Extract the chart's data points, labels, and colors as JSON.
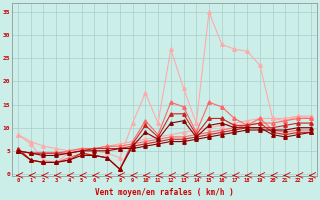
{
  "xlabel": "Vent moyen/en rafales ( km/h )",
  "background_color": "#cceee8",
  "grid_color": "#aacccc",
  "x_ticks": [
    0,
    1,
    2,
    3,
    4,
    5,
    6,
    7,
    8,
    9,
    10,
    11,
    12,
    13,
    14,
    15,
    16,
    17,
    18,
    19,
    20,
    21,
    22,
    23
  ],
  "ylim": [
    -0.5,
    37
  ],
  "xlim": [
    -0.5,
    23.5
  ],
  "series": [
    {
      "color": "#ffaaaa",
      "linewidth": 0.8,
      "marker": "^",
      "markersize": 2.5,
      "x": [
        0,
        1,
        2,
        3,
        4,
        5,
        6,
        7,
        8,
        9,
        10,
        11,
        12,
        13,
        14,
        15,
        16,
        17,
        18,
        19,
        20,
        21,
        22,
        23
      ],
      "y": [
        8.5,
        6.5,
        3.0,
        2.5,
        4.5,
        5.5,
        5.0,
        4.5,
        3.5,
        11.0,
        17.5,
        11.0,
        27.0,
        18.5,
        11.0,
        35.0,
        28.0,
        27.0,
        26.5,
        23.5,
        12.0,
        11.5,
        12.5,
        12.0
      ]
    },
    {
      "color": "#ffaaaa",
      "linewidth": 0.8,
      "marker": "^",
      "markersize": 2.5,
      "x": [
        0,
        1,
        2,
        3,
        4,
        5,
        6,
        7,
        8,
        9,
        10,
        11,
        12,
        13,
        14,
        15,
        16,
        17,
        18,
        19,
        20,
        21,
        22,
        23
      ],
      "y": [
        8.5,
        7.0,
        6.0,
        5.5,
        5.0,
        5.5,
        5.5,
        6.0,
        6.5,
        7.0,
        7.5,
        8.0,
        8.5,
        9.0,
        9.5,
        10.0,
        10.5,
        11.0,
        11.5,
        12.0,
        12.0,
        12.0,
        12.5,
        12.5
      ]
    },
    {
      "color": "#ff6666",
      "linewidth": 0.8,
      "marker": "^",
      "markersize": 2.5,
      "x": [
        0,
        1,
        2,
        3,
        4,
        5,
        6,
        7,
        8,
        9,
        10,
        11,
        12,
        13,
        14,
        15,
        16,
        17,
        18,
        19,
        20,
        21,
        22,
        23
      ],
      "y": [
        5.5,
        3.0,
        2.5,
        2.5,
        3.5,
        4.5,
        4.0,
        3.5,
        1.0,
        7.0,
        11.5,
        8.5,
        15.5,
        14.5,
        9.0,
        15.5,
        14.5,
        12.0,
        10.5,
        12.0,
        9.5,
        9.0,
        9.5,
        9.5
      ]
    },
    {
      "color": "#ff6666",
      "linewidth": 0.8,
      "marker": "^",
      "markersize": 2.5,
      "x": [
        0,
        1,
        2,
        3,
        4,
        5,
        6,
        7,
        8,
        9,
        10,
        11,
        12,
        13,
        14,
        15,
        16,
        17,
        18,
        19,
        20,
        21,
        22,
        23
      ],
      "y": [
        5.0,
        4.5,
        4.5,
        4.5,
        5.0,
        5.5,
        5.5,
        6.0,
        6.0,
        6.5,
        7.0,
        7.5,
        8.0,
        8.0,
        8.5,
        9.0,
        9.5,
        10.0,
        10.5,
        11.0,
        11.0,
        11.5,
        12.0,
        12.0
      ]
    },
    {
      "color": "#cc2222",
      "linewidth": 0.8,
      "marker": "^",
      "markersize": 2.5,
      "x": [
        0,
        1,
        2,
        3,
        4,
        5,
        6,
        7,
        8,
        9,
        10,
        11,
        12,
        13,
        14,
        15,
        16,
        17,
        18,
        19,
        20,
        21,
        22,
        23
      ],
      "y": [
        5.5,
        3.0,
        2.5,
        2.5,
        3.0,
        4.5,
        4.0,
        3.5,
        1.0,
        6.5,
        10.5,
        8.0,
        13.0,
        13.0,
        8.5,
        12.0,
        12.0,
        10.5,
        10.5,
        11.0,
        9.0,
        8.5,
        9.0,
        9.0
      ]
    },
    {
      "color": "#cc2222",
      "linewidth": 0.8,
      "marker": "^",
      "markersize": 2.5,
      "x": [
        0,
        1,
        2,
        3,
        4,
        5,
        6,
        7,
        8,
        9,
        10,
        11,
        12,
        13,
        14,
        15,
        16,
        17,
        18,
        19,
        20,
        21,
        22,
        23
      ],
      "y": [
        5.0,
        4.5,
        4.5,
        4.5,
        4.5,
        5.0,
        5.5,
        5.5,
        5.5,
        6.0,
        6.5,
        7.0,
        7.5,
        7.5,
        8.0,
        8.5,
        9.0,
        9.5,
        10.0,
        10.0,
        10.0,
        10.5,
        11.0,
        11.0
      ]
    },
    {
      "color": "#880000",
      "linewidth": 0.8,
      "marker": "^",
      "markersize": 2.5,
      "x": [
        0,
        1,
        2,
        3,
        4,
        5,
        6,
        7,
        8,
        9,
        10,
        11,
        12,
        13,
        14,
        15,
        16,
        17,
        18,
        19,
        20,
        21,
        22,
        23
      ],
      "y": [
        5.0,
        3.0,
        2.5,
        2.5,
        3.0,
        4.0,
        4.0,
        3.5,
        1.0,
        6.0,
        9.0,
        7.5,
        11.0,
        11.5,
        8.0,
        10.5,
        11.0,
        10.0,
        10.0,
        10.0,
        8.5,
        8.0,
        8.5,
        9.0
      ]
    },
    {
      "color": "#880000",
      "linewidth": 0.8,
      "marker": "^",
      "markersize": 2.5,
      "x": [
        0,
        1,
        2,
        3,
        4,
        5,
        6,
        7,
        8,
        9,
        10,
        11,
        12,
        13,
        14,
        15,
        16,
        17,
        18,
        19,
        20,
        21,
        22,
        23
      ],
      "y": [
        5.0,
        4.5,
        4.0,
        4.0,
        4.5,
        5.0,
        5.0,
        5.0,
        5.5,
        5.5,
        6.0,
        6.5,
        7.0,
        7.0,
        7.5,
        8.0,
        8.5,
        9.0,
        9.5,
        9.5,
        9.5,
        9.5,
        10.0,
        10.0
      ]
    }
  ],
  "yticks": [
    0,
    5,
    10,
    15,
    20,
    25,
    30,
    35
  ]
}
